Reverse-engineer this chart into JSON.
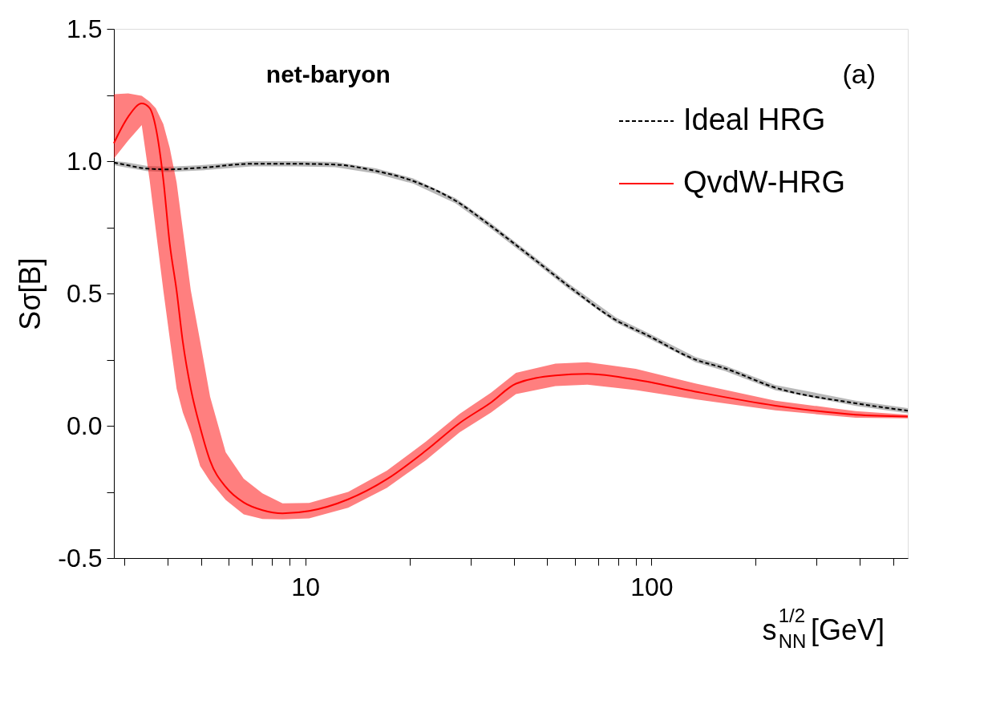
{
  "chart_data": {
    "type": "line",
    "xlabel": "s$_{NN}$$^{1/2}$ [GeV]",
    "ylabel": "Sσ[B]",
    "annotations": [
      "net-baryon",
      "(a)"
    ],
    "log": "x",
    "grid": false,
    "legend": "top right",
    "xlim": [
      2.8,
      550
    ],
    "xticks": [
      {
        "value": 3,
        "label": null
      },
      {
        "value": 4,
        "label": null
      },
      {
        "value": 5,
        "label": null
      },
      {
        "value": 6,
        "label": null
      },
      {
        "value": 7,
        "label": null
      },
      {
        "value": 8,
        "label": null
      },
      {
        "value": 9,
        "label": null
      },
      10,
      {
        "value": 20,
        "label": null
      },
      {
        "value": 30,
        "label": null
      },
      {
        "value": 40,
        "label": null
      },
      {
        "value": 50,
        "label": null
      },
      {
        "value": 60,
        "label": null
      },
      {
        "value": 70,
        "label": null
      },
      {
        "value": 80,
        "label": null
      },
      {
        "value": 90,
        "label": null
      },
      100,
      {
        "value": 200,
        "label": null
      },
      {
        "value": 300,
        "label": null
      },
      {
        "value": 400,
        "label": null
      },
      {
        "value": 500,
        "label": null
      }
    ],
    "ylim": [
      -0.5,
      1.5
    ],
    "yticks": [
      {
        "value": -0.5,
        "label": "-0.5"
      },
      {
        "value": -0.25,
        "label": null
      },
      {
        "value": 0,
        "label": "0.0"
      },
      {
        "value": 0.25,
        "label": null
      },
      {
        "value": 0.5,
        "label": "0.5"
      },
      {
        "value": 0.75,
        "label": null
      },
      {
        "value": 1,
        "label": "1.0"
      },
      {
        "value": 1.25,
        "label": null
      },
      {
        "value": 1.5,
        "label": "1.5"
      }
    ],
    "series": [
      {
        "name": "Ideal HRG",
        "color": "#000000",
        "line_style": "dashed",
        "x": [
          2.8,
          3,
          3.5,
          4,
          5,
          7,
          9.4,
          12.2,
          16,
          20.5,
          27.2,
          34.4,
          46.3,
          57.7,
          78.8,
          97,
          134,
          163,
          228,
          389,
          550
        ],
        "values": [
          0.995,
          0.987,
          0.972,
          0.969,
          0.975,
          0.99,
          0.99,
          0.987,
          0.963,
          0.925,
          0.85,
          0.755,
          0.625,
          0.527,
          0.4,
          0.343,
          0.25,
          0.217,
          0.144,
          0.085,
          0.057
        ],
        "lower": [
          0.985,
          0.977,
          0.962,
          0.959,
          0.965,
          0.98,
          0.98,
          0.977,
          0.953,
          0.915,
          0.84,
          0.745,
          0.615,
          0.517,
          0.39,
          0.333,
          0.24,
          0.207,
          0.134,
          0.075,
          0.047
        ],
        "upper": [
          1.0,
          0.997,
          0.982,
          0.979,
          0.985,
          1.0,
          1.0,
          0.997,
          0.973,
          0.935,
          0.86,
          0.765,
          0.635,
          0.537,
          0.41,
          0.353,
          0.26,
          0.227,
          0.154,
          0.095,
          0.067
        ]
      },
      {
        "name": "QvdW-HRG",
        "color": "#ff0000",
        "line_style": "solid",
        "x": [
          2.8,
          3.08,
          3.37,
          3.55,
          3.7,
          3.89,
          4.06,
          4.25,
          4.43,
          4.67,
          4.97,
          5.31,
          5.89,
          6.64,
          7.52,
          8.6,
          10.26,
          13.3,
          17.2,
          22.3,
          27.9,
          34.4,
          40.6,
          52.8,
          65.3,
          90.1,
          134,
          228,
          389,
          550
        ],
        "values": [
          1.068,
          1.168,
          1.218,
          1.201,
          1.127,
          0.931,
          0.688,
          0.51,
          0.316,
          0.14,
          -0.006,
          -0.132,
          -0.231,
          -0.29,
          -0.319,
          -0.331,
          -0.322,
          -0.278,
          -0.202,
          -0.094,
          0.01,
          0.088,
          0.159,
          0.19,
          0.196,
          0.174,
          0.129,
          0.076,
          0.042,
          0.035
        ],
        "lower": [
          1.01,
          1.078,
          1.136,
          0.93,
          0.74,
          0.512,
          0.33,
          0.14,
          0.05,
          -0.03,
          -0.152,
          -0.21,
          -0.28,
          -0.335,
          -0.352,
          -0.354,
          -0.35,
          -0.31,
          -0.235,
          -0.13,
          -0.025,
          0.05,
          0.12,
          0.15,
          0.155,
          0.135,
          0.1,
          0.058,
          0.03,
          0.028
        ],
        "upper": [
          1.253,
          1.256,
          1.247,
          1.225,
          1.2,
          1.14,
          1.05,
          0.92,
          0.74,
          0.512,
          0.32,
          0.11,
          -0.1,
          -0.2,
          -0.255,
          -0.293,
          -0.292,
          -0.25,
          -0.17,
          -0.06,
          0.045,
          0.125,
          0.2,
          0.235,
          0.24,
          0.215,
          0.16,
          0.095,
          0.055,
          0.042
        ]
      }
    ]
  }
}
